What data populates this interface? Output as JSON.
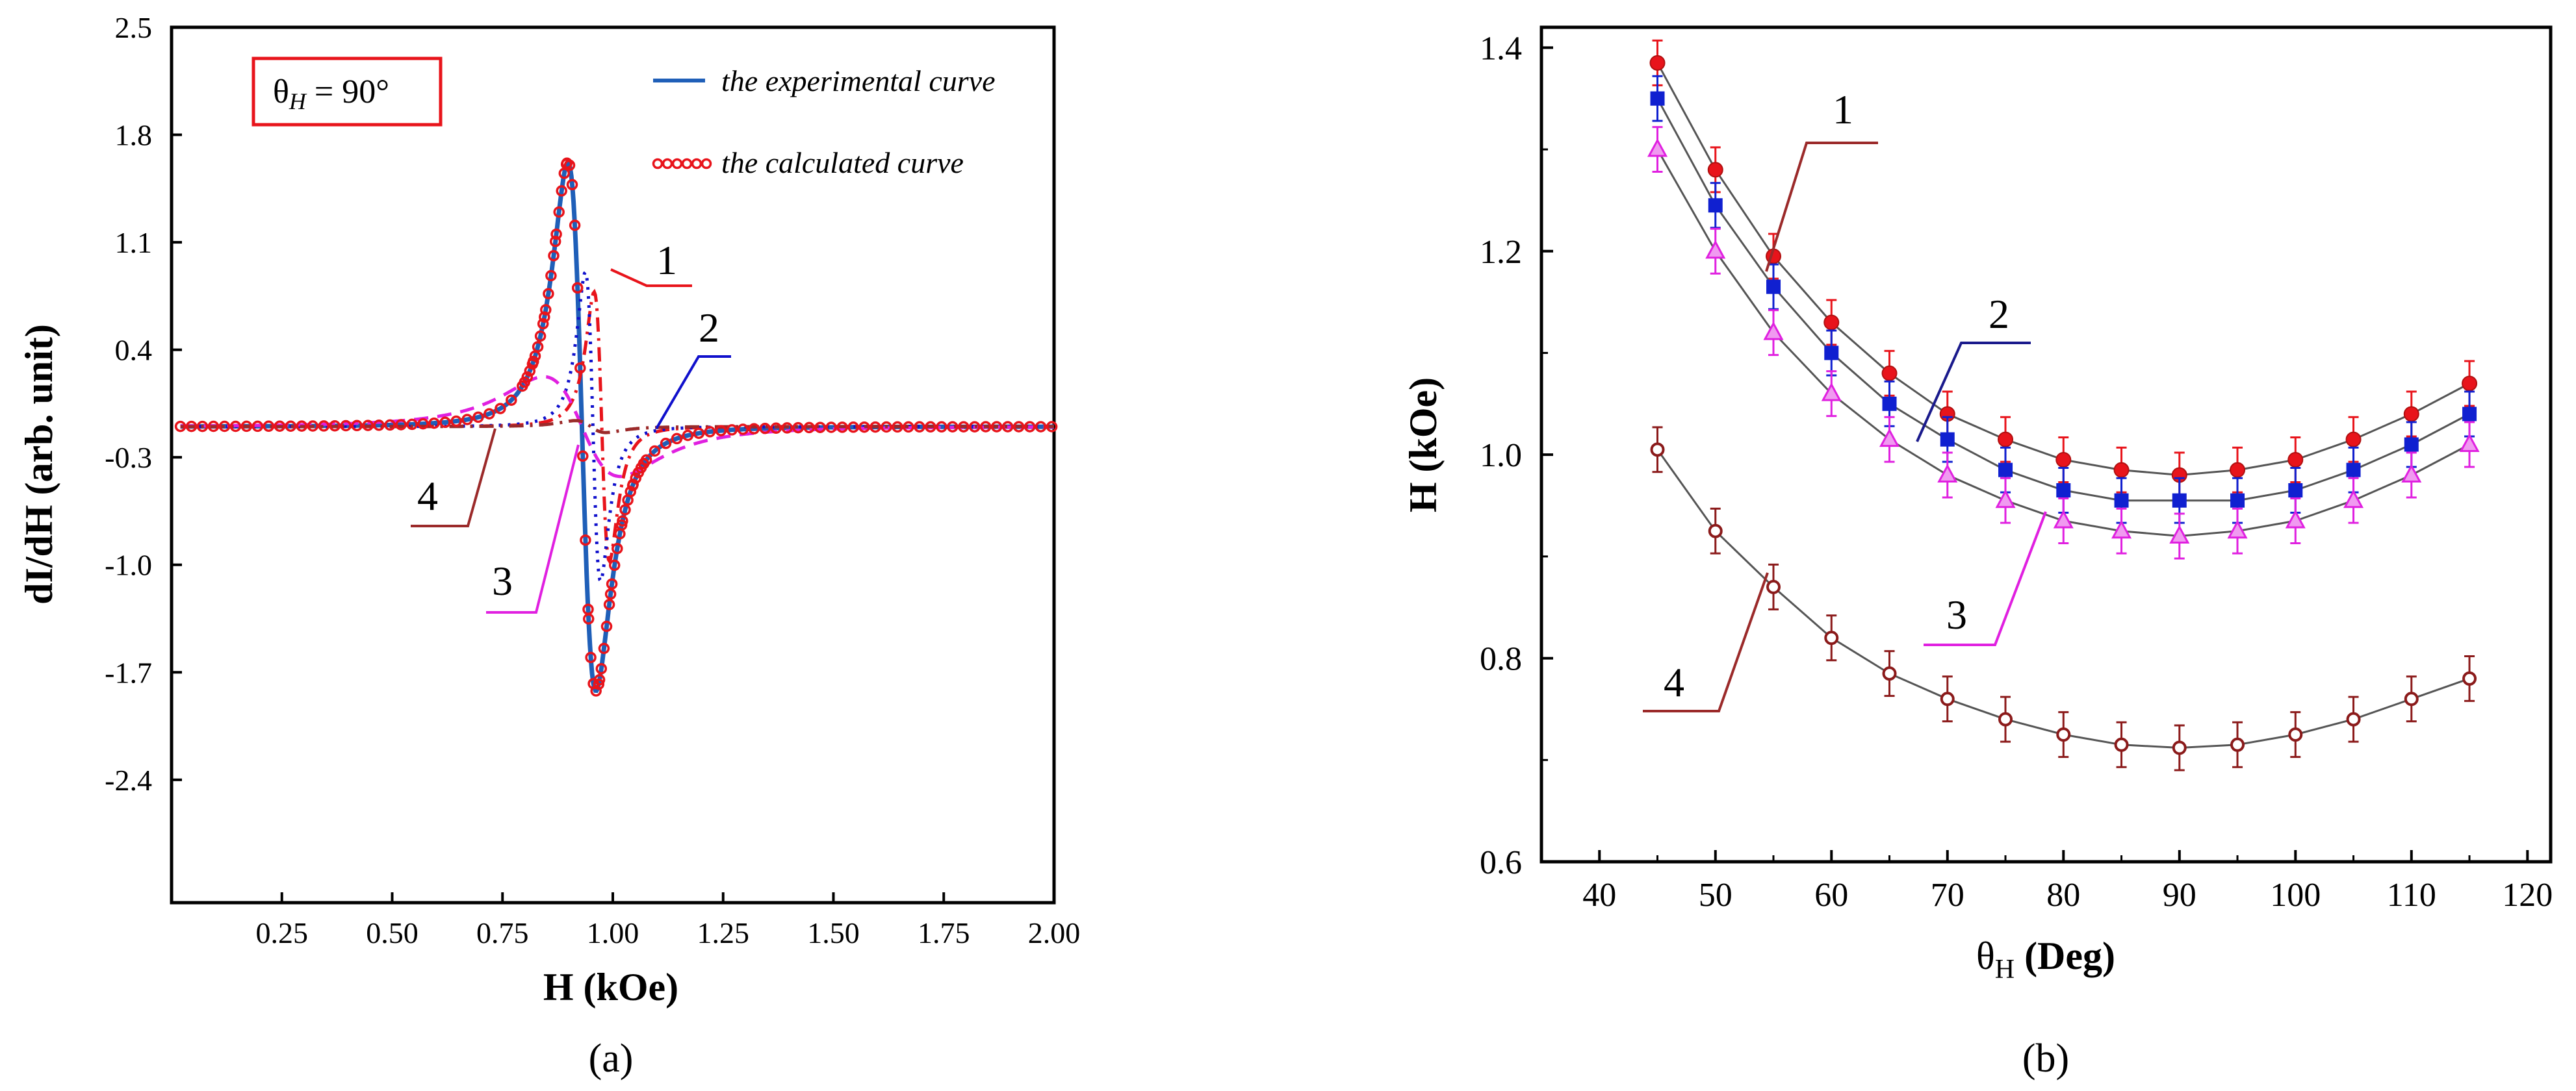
{
  "chart_data": [
    {
      "id": "a",
      "type": "line",
      "caption": "(a)",
      "xlabel": "H (kOe)",
      "ylabel": "dI/dH (arb. unit)",
      "xlim": [
        0.0,
        2.0
      ],
      "ylim": [
        -3.2,
        2.5
      ],
      "xticks": [
        0.25,
        0.5,
        0.75,
        1.0,
        1.25,
        1.5,
        1.75,
        2.0
      ],
      "xtick_labels": [
        "0.25",
        "0.50",
        "0.75",
        "1.00",
        "1.25",
        "1.50",
        "1.75",
        "2.00"
      ],
      "yticks": [
        2.5,
        1.8,
        1.1,
        0.4,
        -0.3,
        -1.0,
        -1.7,
        -2.4
      ],
      "ytick_labels": [
        "2.5",
        "1.8",
        "1.1",
        "0.4",
        "-0.3",
        "-1.0",
        "-1.7",
        "-2.4"
      ],
      "annotation_box": {
        "symbol": "θ",
        "sub": "H",
        "text": " = 90°",
        "color": "#e8141b"
      },
      "legend": [
        {
          "label": "the experimental curve",
          "color": "#1f5fb8",
          "style": "line"
        },
        {
          "label": "the calculated curve",
          "color": "#e8141b",
          "style": "circles"
        }
      ],
      "series": [
        {
          "name": "experimental",
          "color": "#1f5fb8",
          "style": "solid",
          "x0": 0.93,
          "g": 0.055,
          "amp": 2.65
        },
        {
          "name": "calculated",
          "color": "#e8141b",
          "style": "circles",
          "x0": 0.93,
          "g": 0.055,
          "amp": 2.65
        },
        {
          "name": "1",
          "color": "#e8141b",
          "style": "dashdot",
          "x0": 0.975,
          "g": 0.03,
          "amp": 1.35
        },
        {
          "name": "2",
          "color": "#1010cc",
          "style": "dotted",
          "x0": 0.955,
          "g": 0.03,
          "amp": 1.55
        },
        {
          "name": "3",
          "color": "#e020e0",
          "style": "dashed",
          "x0": 0.93,
          "g": 0.15,
          "amp": 0.5
        },
        {
          "name": "4",
          "color": "#9b2a2a",
          "style": "dashdot",
          "x0": 0.95,
          "g": 0.06,
          "amp": 0.06
        }
      ],
      "curve_labels": [
        {
          "text": "1",
          "color": "#e8141b"
        },
        {
          "text": "2",
          "color": "#1010cc"
        },
        {
          "text": "3",
          "color": "#e020e0"
        },
        {
          "text": "4",
          "color": "#9b2a2a"
        }
      ]
    },
    {
      "id": "b",
      "type": "line",
      "caption": "(b)",
      "xlabel": "θH (Deg)",
      "xlabel_symbol": "θ",
      "xlabel_sub": "H",
      "xlabel_rest": " (Deg)",
      "ylabel": "H (kOe)",
      "xlim": [
        35,
        122
      ],
      "ylim": [
        0.6,
        1.42
      ],
      "xticks": [
        40,
        50,
        60,
        70,
        80,
        90,
        100,
        110,
        120
      ],
      "xtick_labels": [
        "40",
        "50",
        "60",
        "70",
        "80",
        "90",
        "100",
        "110",
        "120"
      ],
      "yticks": [
        0.6,
        0.8,
        1.0,
        1.2,
        1.4
      ],
      "ytick_labels": [
        "0.6",
        "0.8",
        "1.0",
        "1.2",
        "1.4"
      ],
      "x": [
        45,
        50,
        55,
        60,
        65,
        70,
        75,
        80,
        85,
        90,
        95,
        100,
        105,
        110,
        115
      ],
      "series": [
        {
          "name": "1",
          "color": "#e8141b",
          "marker": "circle",
          "label_color": "#e8141b",
          "values": [
            1.385,
            1.28,
            1.195,
            1.13,
            1.08,
            1.04,
            1.015,
            0.995,
            0.985,
            0.98,
            0.985,
            0.995,
            1.015,
            1.04,
            1.07
          ]
        },
        {
          "name": "2",
          "color": "#1020d0",
          "marker": "square",
          "label_color": "#1a1a8c",
          "values": [
            1.35,
            1.245,
            1.165,
            1.1,
            1.05,
            1.015,
            0.985,
            0.965,
            0.955,
            0.955,
            0.955,
            0.965,
            0.985,
            1.01,
            1.04
          ]
        },
        {
          "name": "3",
          "color": "#e020e0",
          "marker": "triangle",
          "label_color": "#e020e0",
          "values": [
            1.3,
            1.2,
            1.12,
            1.06,
            1.015,
            0.98,
            0.955,
            0.935,
            0.925,
            0.92,
            0.925,
            0.935,
            0.955,
            0.98,
            1.01
          ]
        },
        {
          "name": "4",
          "color": "#8b1a1a",
          "marker": "open-circle",
          "label_color": "#9b2a2a",
          "values": [
            1.005,
            0.925,
            0.87,
            0.82,
            0.785,
            0.76,
            0.74,
            0.725,
            0.715,
            0.712,
            0.715,
            0.725,
            0.74,
            0.76,
            0.78
          ]
        }
      ]
    }
  ]
}
